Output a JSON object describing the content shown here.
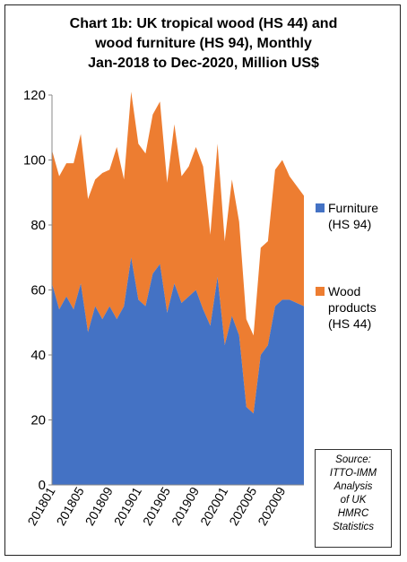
{
  "title_lines": [
    "Chart 1b: UK tropical wood (HS 44) and",
    "wood furniture (HS 94), Monthly",
    "Jan-2018 to Dec-2020, Million US$"
  ],
  "legend": {
    "furniture_lines": [
      "Furniture",
      "(HS 94)"
    ],
    "wood_lines": [
      "Wood",
      "products",
      "(HS 44)"
    ]
  },
  "source_lines": [
    "Source:",
    "ITTO-IMM",
    "Analysis",
    "of UK",
    "HMRC",
    "Statistics"
  ],
  "colors": {
    "furniture": "#4472C4",
    "wood_products": "#ED7D31"
  },
  "chart_data": {
    "type": "area",
    "stacked": true,
    "title": "Chart 1b: UK tropical wood (HS 44) and wood furniture (HS 94), Monthly Jan-2018 to Dec-2020, Million US$",
    "xlabel": "",
    "ylabel": "",
    "ylim": [
      0,
      120
    ],
    "yticks": [
      0,
      20,
      40,
      60,
      80,
      100,
      120
    ],
    "grid": false,
    "legend_position": "right",
    "x": [
      "201801",
      "201802",
      "201803",
      "201804",
      "201805",
      "201806",
      "201807",
      "201808",
      "201809",
      "201810",
      "201811",
      "201812",
      "201901",
      "201902",
      "201903",
      "201904",
      "201905",
      "201906",
      "201907",
      "201908",
      "201909",
      "201910",
      "201911",
      "201912",
      "202001",
      "202002",
      "202003",
      "202004",
      "202005",
      "202006",
      "202007",
      "202008",
      "202009",
      "202010",
      "202011",
      "202012"
    ],
    "xtick_labels": [
      "201801",
      "201805",
      "201809",
      "201901",
      "201905",
      "201909",
      "202001",
      "202005",
      "202009"
    ],
    "series": [
      {
        "name": "Furniture (HS 94)",
        "values": [
          62,
          54,
          58,
          54,
          62,
          47,
          55,
          51,
          55,
          51,
          55,
          70,
          57,
          55,
          65,
          68,
          53,
          62,
          56,
          58,
          60,
          54,
          49,
          64,
          43,
          52,
          46,
          24,
          22,
          40,
          43,
          55,
          57,
          57,
          56,
          55
        ]
      },
      {
        "name": "Wood products (HS 44)",
        "values": [
          41,
          41,
          41,
          45,
          46,
          41,
          39,
          45,
          42,
          53,
          39,
          51,
          48,
          47,
          49,
          50,
          40,
          49,
          39,
          40,
          44,
          44,
          28,
          41,
          32,
          42,
          35,
          27,
          24,
          33,
          32,
          42,
          43,
          38,
          36,
          34
        ]
      }
    ]
  }
}
